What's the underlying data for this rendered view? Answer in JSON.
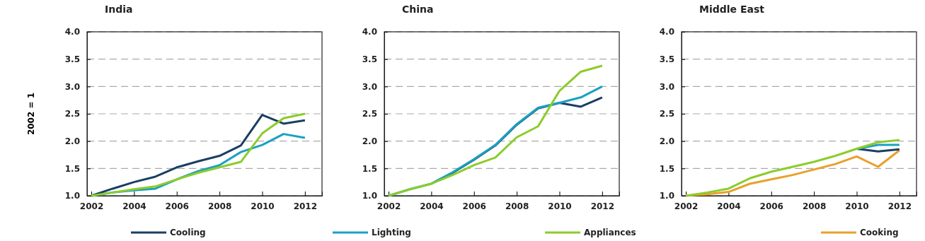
{
  "chart_data": [
    {
      "type": "line",
      "title": "India",
      "ylabel": "2002 = 1",
      "x": [
        2002,
        2003,
        2004,
        2005,
        2006,
        2007,
        2008,
        2009,
        2010,
        2011,
        2012
      ],
      "xlim": [
        2001.8,
        2012.8
      ],
      "xticks": [
        2002,
        2004,
        2006,
        2008,
        2010,
        2012
      ],
      "ylim": [
        1,
        4
      ],
      "yticks": [
        {
          "value": 1,
          "label": "1.0"
        },
        {
          "value": 1.5,
          "label": "1.5"
        },
        {
          "value": 2,
          "label": "2.0"
        },
        {
          "value": 2.5,
          "label": "2.5"
        },
        {
          "value": 3,
          "label": "3.0"
        },
        {
          "value": 3.5,
          "label": "3.5"
        },
        {
          "value": 4,
          "label": "4.0"
        }
      ],
      "grid": "y",
      "line_style": "solid",
      "legend": "bottom",
      "series": [
        {
          "name": "Cooling",
          "color": "#1a3f63",
          "values": [
            1.0,
            1.13,
            1.25,
            1.35,
            1.52,
            1.63,
            1.73,
            1.92,
            2.48,
            2.32,
            2.38
          ]
        },
        {
          "name": "Lighting",
          "color": "#1ba0c4",
          "values": [
            1.0,
            1.06,
            1.1,
            1.13,
            1.3,
            1.45,
            1.56,
            1.8,
            1.93,
            2.13,
            2.06
          ]
        },
        {
          "color": "#8ccc2b",
          "values": [
            1.0,
            1.06,
            1.12,
            1.17,
            1.3,
            1.42,
            1.52,
            1.62,
            2.14,
            2.42,
            2.5
          ]
        }
      ]
    },
    {
      "type": "line",
      "title": "China",
      "x": [
        2002,
        2003,
        2004,
        2005,
        2006,
        2007,
        2008,
        2009,
        2010,
        2011,
        2012
      ],
      "xlim": [
        2001.8,
        2012.8
      ],
      "xticks": [
        2002,
        2004,
        2006,
        2008,
        2010,
        2012
      ],
      "ylim": [
        1,
        4
      ],
      "yticks": [
        {
          "value": 1,
          "label": "1.0"
        },
        {
          "value": 1.5,
          "label": "1.5"
        },
        {
          "value": 2,
          "label": "2.0"
        },
        {
          "value": 2.5,
          "label": "2.5"
        },
        {
          "value": 3,
          "label": "3.0"
        },
        {
          "value": 3.5,
          "label": "3.5"
        },
        {
          "value": 4,
          "label": "4.0"
        }
      ],
      "grid": "y",
      "line_style": "solid",
      "legend": "bottom",
      "series": [
        {
          "color": "#1a3f63",
          "values": [
            null,
            null,
            1.22,
            1.42,
            1.66,
            1.92,
            2.3,
            2.6,
            2.7,
            2.63,
            2.8
          ]
        },
        {
          "color": "#1ba0c4",
          "values": [
            1.0,
            1.12,
            1.22,
            1.43,
            1.67,
            1.93,
            2.31,
            2.61,
            2.7,
            2.8,
            3.0
          ]
        },
        {
          "name": "Appliances",
          "color": "#8ccc2b",
          "values": [
            1.0,
            1.12,
            1.22,
            1.38,
            1.56,
            1.7,
            2.07,
            2.27,
            2.92,
            3.27,
            3.38
          ]
        }
      ]
    },
    {
      "type": "line",
      "title": "Middle  East",
      "x": [
        2002,
        2003,
        2004,
        2005,
        2006,
        2007,
        2008,
        2009,
        2010,
        2011,
        2012
      ],
      "xlim": [
        2001.8,
        2012.8
      ],
      "xticks": [
        2002,
        2004,
        2006,
        2008,
        2010,
        2012
      ],
      "ylim": [
        1,
        4
      ],
      "yticks": [
        {
          "value": 1,
          "label": "1.0"
        },
        {
          "value": 1.5,
          "label": "1.5"
        },
        {
          "value": 2,
          "label": "2.0"
        },
        {
          "value": 2.5,
          "label": "2.5"
        },
        {
          "value": 3,
          "label": "3.0"
        },
        {
          "value": 3.5,
          "label": "3.5"
        },
        {
          "value": 4,
          "label": "4.0"
        }
      ],
      "grid": "y",
      "line_style": "solid",
      "legend": "bottom",
      "series": [
        {
          "name": "Cooking",
          "color": "#e8a02a",
          "values": [
            1.0,
            1.03,
            1.07,
            1.22,
            1.3,
            1.38,
            1.48,
            1.58,
            1.72,
            1.53,
            1.83
          ]
        },
        {
          "color": "#1a3f63",
          "values": [
            null,
            null,
            null,
            null,
            null,
            null,
            null,
            null,
            1.86,
            1.81,
            1.85
          ]
        },
        {
          "color": "#1ba0c4",
          "values": [
            null,
            null,
            null,
            null,
            null,
            null,
            null,
            null,
            1.86,
            1.93,
            1.93
          ]
        },
        {
          "color": "#8ccc2b",
          "values": [
            1.0,
            1.06,
            1.13,
            1.32,
            1.44,
            1.53,
            1.62,
            1.73,
            1.86,
            1.98,
            2.02
          ]
        }
      ]
    }
  ]
}
